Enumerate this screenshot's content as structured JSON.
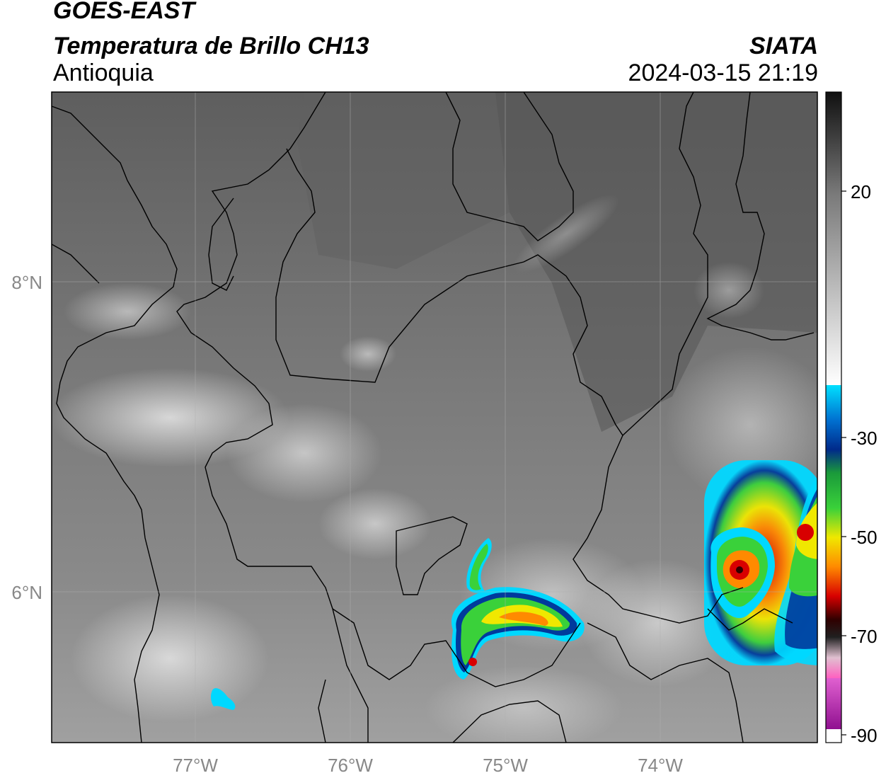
{
  "header": {
    "satellite": "GOES-EAST",
    "product": "Temperatura de Brillo CH13",
    "region": "Antioquia",
    "agency": "SIATA",
    "datetime": "2024-03-15 21:19"
  },
  "axes": {
    "lon_ticks": [
      {
        "value": -77,
        "label": "77°W"
      },
      {
        "value": -76,
        "label": "76°W"
      },
      {
        "value": -75,
        "label": "75°W"
      },
      {
        "value": -74,
        "label": "74°W"
      }
    ],
    "lat_ticks": [
      {
        "value": 8,
        "label": "8°N"
      },
      {
        "value": 6,
        "label": "6°N"
      }
    ],
    "grid": true
  },
  "colorbar": {
    "unit": "°C",
    "ticks": [
      {
        "value": 20,
        "label": "20"
      },
      {
        "value": -30,
        "label": "-30"
      },
      {
        "value": -50,
        "label": "-50"
      },
      {
        "value": -70,
        "label": "-70"
      },
      {
        "value": -90,
        "label": "-90"
      }
    ]
  },
  "colors": {
    "warm_gray_dark": "#5a5a5a",
    "warm_gray_light": "#d8d8d8",
    "cold_cyan": "#00d8ff",
    "cold_blue": "#003a9c",
    "cold_green": "#3ad13a",
    "cold_yellow": "#f0e800",
    "cold_orange": "#ff8a00",
    "cold_red": "#d80000",
    "very_cold_magenta": "#c03cc0"
  }
}
